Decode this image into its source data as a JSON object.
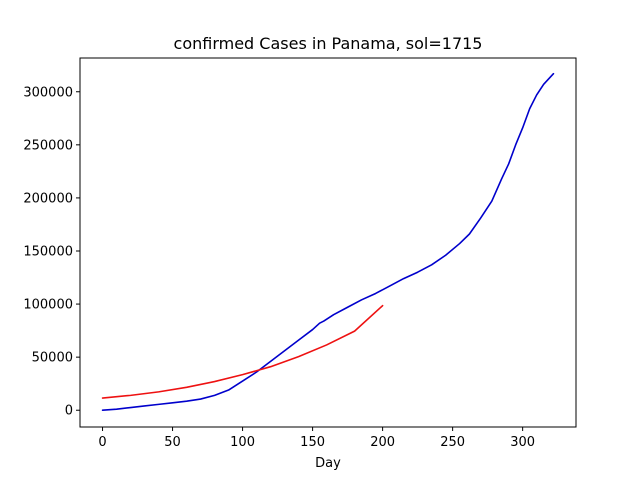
{
  "chart_data": {
    "type": "line",
    "title": "confirmed Cases in Panama, sol=1715",
    "xlabel": "Day",
    "ylabel": "",
    "xlim": [
      -16.1,
      338.1
    ],
    "ylim": [
      -15800,
      331800
    ],
    "xticks": [
      0,
      50,
      100,
      150,
      200,
      250,
      300
    ],
    "yticks": [
      0,
      50000,
      100000,
      150000,
      200000,
      250000,
      300000
    ],
    "grid": false,
    "legend": "none",
    "series": [
      {
        "color": "#0000cc",
        "x": [
          0,
          10,
          20,
          30,
          40,
          50,
          60,
          70,
          80,
          90,
          100,
          110,
          120,
          130,
          140,
          150,
          155,
          158,
          165,
          175,
          185,
          195,
          205,
          215,
          225,
          235,
          245,
          255,
          262,
          270,
          278,
          285,
          290,
          295,
          300,
          305,
          310,
          315,
          322
        ],
        "y": [
          0,
          1000,
          2500,
          4000,
          5500,
          7000,
          8500,
          10500,
          14000,
          19000,
          27500,
          36000,
          46000,
          56000,
          66000,
          76000,
          82000,
          84000,
          90000,
          97000,
          104000,
          110000,
          117000,
          124000,
          130000,
          137000,
          146000,
          157000,
          166000,
          181000,
          197000,
          218000,
          232000,
          250000,
          266000,
          284000,
          297000,
          307000,
          317000
        ]
      },
      {
        "color": "#ee1111",
        "x": [
          0,
          20,
          40,
          60,
          80,
          100,
          120,
          140,
          160,
          180,
          200
        ],
        "y": [
          11500,
          14000,
          17300,
          21600,
          27000,
          33500,
          41000,
          50500,
          61500,
          74500,
          98500
        ]
      }
    ]
  }
}
